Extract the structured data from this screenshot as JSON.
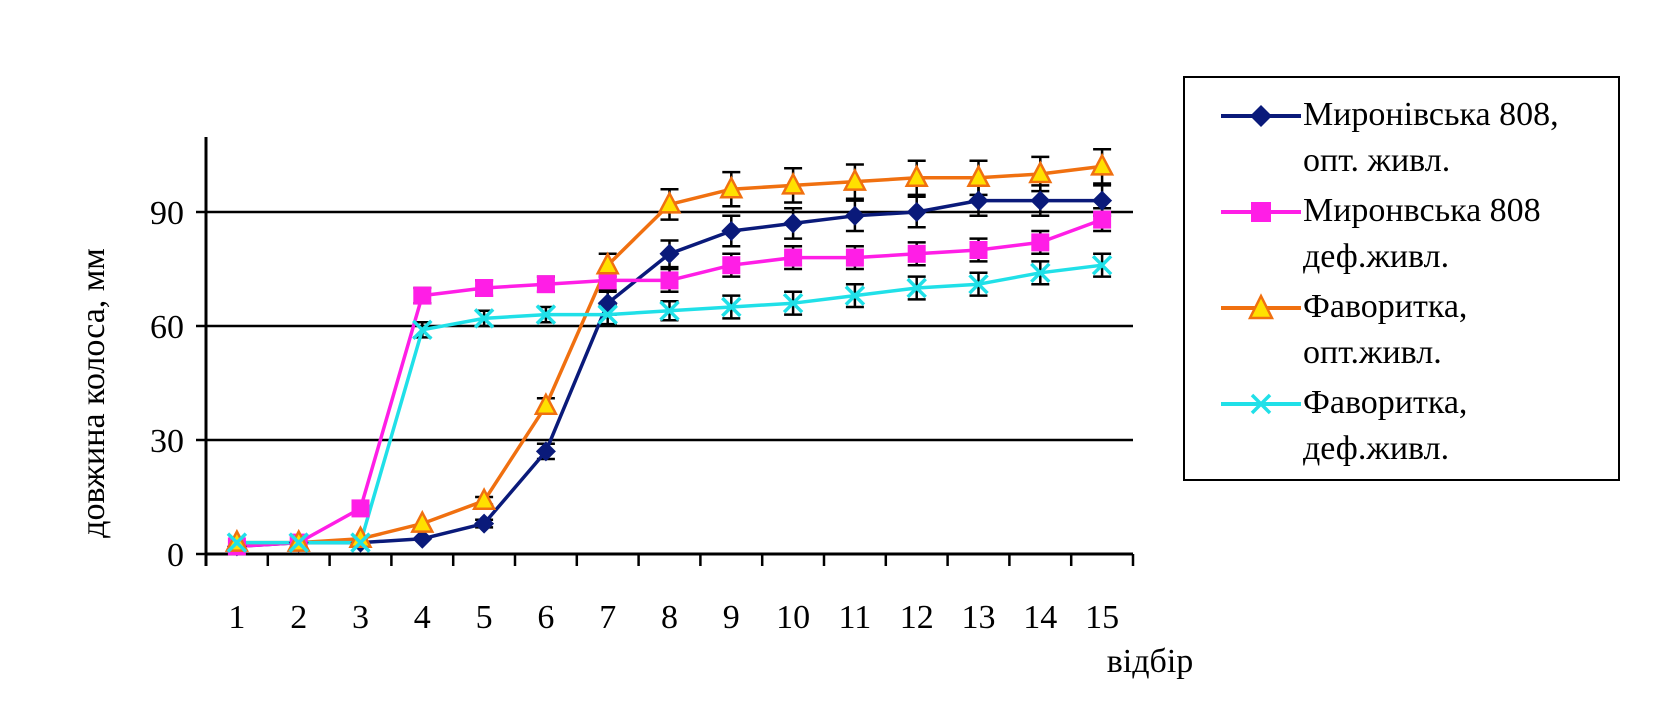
{
  "chart_data": {
    "type": "line",
    "xlabel": "відбір",
    "ylabel": "довжина колоса, мм",
    "categories": [
      "1",
      "2",
      "3",
      "4",
      "5",
      "6",
      "7",
      "8",
      "9",
      "10",
      "11",
      "12",
      "13",
      "14",
      "15"
    ],
    "ylim": [
      0,
      110
    ],
    "yticks": [
      "0",
      "30",
      "60",
      "90"
    ],
    "ytick_values": [
      0,
      30,
      60,
      90
    ],
    "grid": "horizontal",
    "legend": "right",
    "series": [
      {
        "name_line1": "Миронівська 808,",
        "name_line2": "опт. живл.",
        "color": "#0a1a7a",
        "marker": "diamond",
        "values": [
          2,
          3,
          3,
          4,
          8,
          27,
          66,
          79,
          85,
          87,
          89,
          90,
          93,
          93,
          93
        ],
        "errors": [
          0,
          0,
          0,
          0,
          1,
          2,
          3,
          3.5,
          4,
          4,
          4,
          4,
          4,
          4,
          4
        ]
      },
      {
        "name_line1": "Миронвська 808",
        "name_line2": "деф.живл.",
        "color": "#ff1ee6",
        "marker": "square",
        "values": [
          2,
          3,
          12,
          68,
          70,
          71,
          72,
          72,
          76,
          78,
          78,
          79,
          80,
          82,
          88
        ],
        "errors": [
          0,
          0,
          0,
          2,
          2,
          2,
          2.5,
          3,
          3,
          3,
          3,
          3,
          3,
          3,
          3
        ]
      },
      {
        "name_line1": "Фаворитка,",
        "name_line2": "опт.живл.",
        "color": "#f07010",
        "marker_fill": "#ffe000",
        "marker": "triangle",
        "values": [
          3,
          3,
          4,
          8,
          14,
          39,
          76,
          92,
          96,
          97,
          98,
          99,
          99,
          100,
          102
        ],
        "errors": [
          0,
          0,
          0,
          0,
          1,
          2,
          3,
          4,
          4.5,
          4.5,
          4.5,
          4.5,
          4.5,
          4.5,
          4.5
        ]
      },
      {
        "name_line1": "Фаворитка,",
        "name_line2": "деф.живл.",
        "color": "#20e0e8",
        "marker": "x",
        "values": [
          3,
          3,
          3,
          59,
          62,
          63,
          63,
          64,
          65,
          66,
          68,
          70,
          71,
          74,
          76
        ],
        "errors": [
          0,
          0,
          0,
          2,
          2,
          2,
          2.5,
          2.5,
          3,
          3,
          3,
          3,
          3,
          3,
          3
        ]
      }
    ]
  }
}
